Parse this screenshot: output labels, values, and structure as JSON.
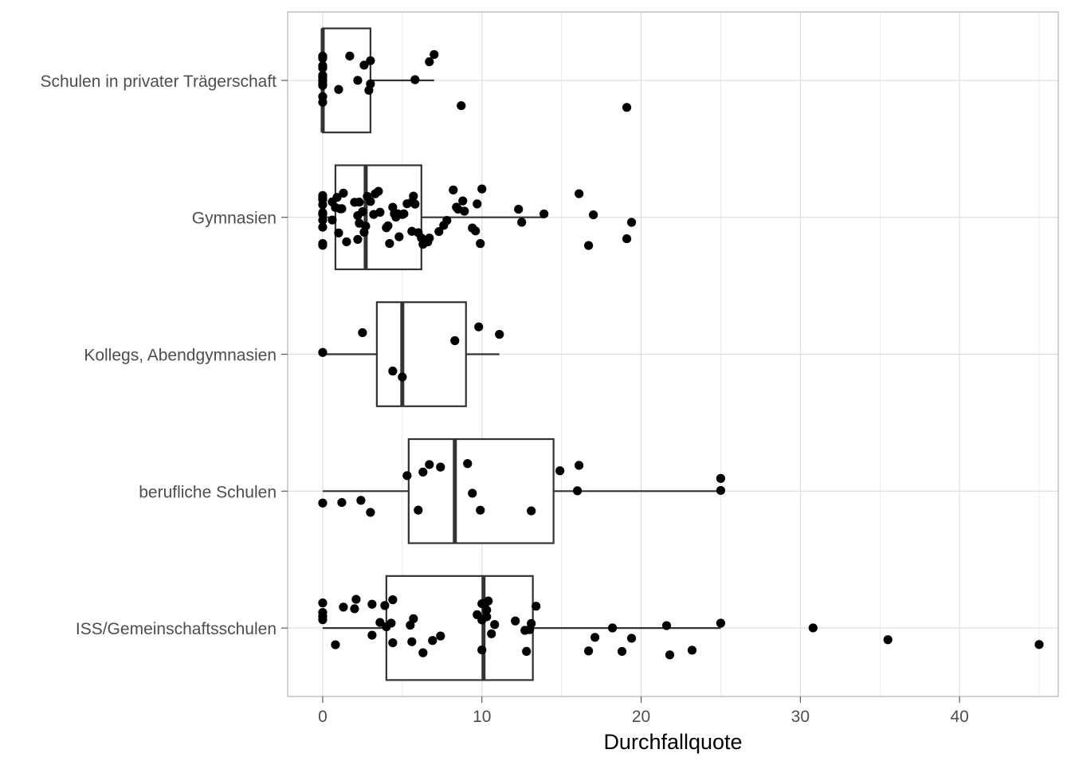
{
  "chart_data": {
    "type": "boxplot",
    "orientation": "horizontal",
    "title": "",
    "xlabel": "Durchfallquote",
    "ylabel": "",
    "xlim": [
      -2.2,
      46.2
    ],
    "x_ticks": [
      0,
      10,
      20,
      30,
      40
    ],
    "x_tick_labels": [
      "0",
      "10",
      "20",
      "30",
      "40"
    ],
    "grid": true,
    "legend": "none",
    "colors": {
      "box_stroke": "#333333",
      "point": "#000000",
      "grid": "#dcdcdc",
      "panel_border": "#b3b3b3",
      "axis_text": "#4d4d4d",
      "title_text": "#000000"
    },
    "categories": [
      "Schulen in privater Trägerschaft",
      "Gymnasien",
      "Kollegs, Abendgymnasien",
      "berufliche Schulen",
      "ISS/Gemeinschaftsschulen"
    ],
    "boxes": [
      {
        "category": "Schulen in privater Trägerschaft",
        "whisker_low": 0,
        "q1": 0,
        "median": 0,
        "q3": 3.0,
        "whisker_high": 7.0
      },
      {
        "category": "Gymnasien",
        "whisker_low": 0,
        "q1": 0.8,
        "median": 2.7,
        "q3": 6.2,
        "whisker_high": 13.9
      },
      {
        "category": "Kollegs, Abendgymnasien",
        "whisker_low": 0,
        "q1": 3.4,
        "median": 5.0,
        "q3": 9.0,
        "whisker_high": 11.1
      },
      {
        "category": "berufliche Schulen",
        "whisker_low": 0,
        "q1": 5.4,
        "median": 8.3,
        "q3": 14.5,
        "whisker_high": 25.0
      },
      {
        "category": "ISS/Gemeinschaftsschulen",
        "whisker_low": 0,
        "q1": 4.0,
        "median": 10.1,
        "q3": 13.2,
        "whisker_high": 25.0
      }
    ],
    "points": [
      {
        "category": "Schulen in privater Trägerschaft",
        "values": [
          0,
          0,
          0,
          0,
          0,
          0,
          0,
          0,
          0,
          0,
          0,
          0,
          1.0,
          1.7,
          2.2,
          2.6,
          2.9,
          3.0,
          3.0,
          5.8,
          6.7,
          7.0,
          8.7,
          19.1
        ]
      },
      {
        "category": "Gymnasien",
        "values": [
          0,
          0,
          0,
          0,
          0,
          0,
          0,
          0,
          0,
          0,
          0,
          0.6,
          0.6,
          0.8,
          0.9,
          1.0,
          1.1,
          1.2,
          1.3,
          1.5,
          2.0,
          2.2,
          2.2,
          2.3,
          2.3,
          2.5,
          2.6,
          2.7,
          2.8,
          3.0,
          3.2,
          3.3,
          3.5,
          3.6,
          4.0,
          4.1,
          4.2,
          4.4,
          4.5,
          4.6,
          4.7,
          4.8,
          5.0,
          5.1,
          5.3,
          5.6,
          5.6,
          5.7,
          5.8,
          6.0,
          6.2,
          6.3,
          6.6,
          6.7,
          7.3,
          7.6,
          7.8,
          8.2,
          8.4,
          8.5,
          8.8,
          8.9,
          9.4,
          9.6,
          9.7,
          9.9,
          10.0,
          12.3,
          12.5,
          13.9,
          16.1,
          16.7,
          17.0,
          19.1,
          19.4
        ]
      },
      {
        "category": "Kollegs, Abendgymnasien",
        "values": [
          0,
          2.5,
          4.4,
          5.0,
          8.3,
          9.8,
          11.1
        ]
      },
      {
        "category": "berufliche Schulen",
        "values": [
          0,
          1.2,
          2.4,
          3.0,
          5.3,
          6.0,
          6.3,
          6.7,
          7.4,
          9.1,
          9.4,
          9.9,
          13.1,
          14.9,
          16.0,
          16.1,
          25.0,
          25.0
        ]
      },
      {
        "category": "ISS/Gemeinschaftsschulen",
        "values": [
          0,
          0,
          0,
          0,
          0.8,
          1.3,
          2.0,
          2.1,
          3.1,
          3.1,
          3.6,
          3.9,
          4.0,
          4.3,
          4.4,
          4.4,
          5.5,
          5.6,
          5.7,
          6.3,
          6.9,
          7.4,
          9.7,
          10.0,
          10.0,
          10.0,
          10.1,
          10.2,
          10.3,
          10.3,
          10.4,
          10.6,
          10.8,
          12.1,
          12.7,
          12.8,
          13.0,
          13.1,
          13.4,
          16.7,
          17.1,
          18.2,
          18.8,
          19.4,
          21.6,
          21.8,
          23.2,
          25.0,
          30.8,
          35.5,
          45.0
        ]
      }
    ]
  }
}
